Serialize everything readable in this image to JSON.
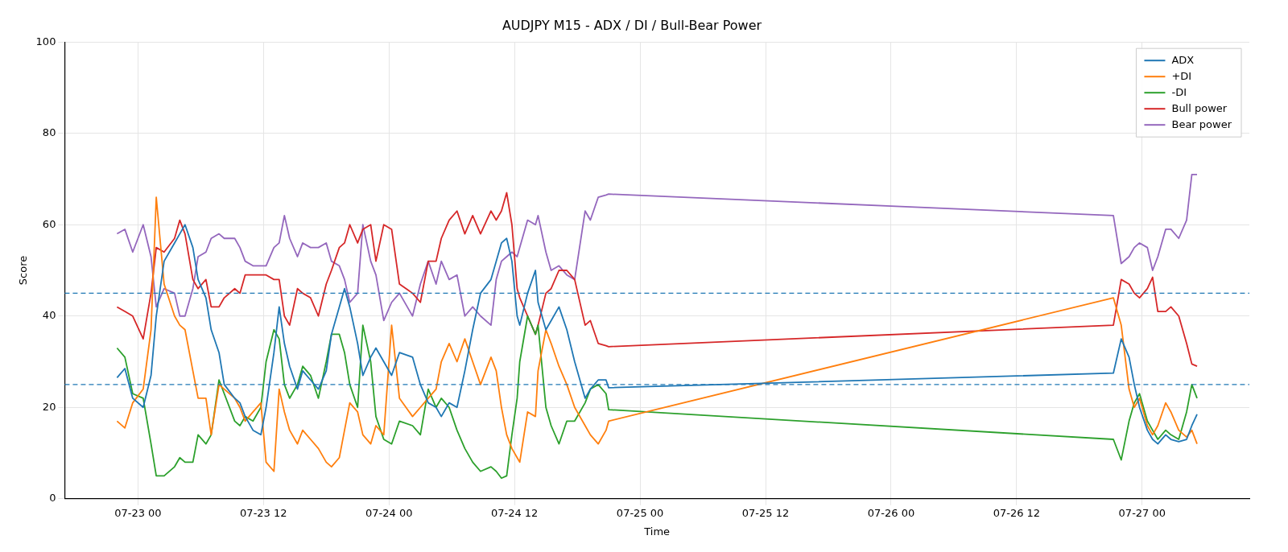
{
  "chart_data": {
    "type": "line",
    "title": "AUDJPY M15 - ADX / DI / Bull-Bear Power",
    "xlabel": "Time",
    "ylabel": "Score",
    "x": [
      "--07-22T22:00",
      "--07-22T22:45",
      "--07-22T23:30",
      "--07-23T00:30",
      "--07-23T01:15",
      "--07-23T01:45",
      "--07-23T02:30",
      "--07-23T03:30",
      "--07-23T04:00",
      "--07-23T04:30",
      "--07-23T05:15",
      "--07-23T05:45",
      "--07-23T06:30",
      "--07-23T07:00",
      "--07-23T07:45",
      "--07-23T08:15",
      "--07-23T09:15",
      "--07-23T09:45",
      "--07-23T10:15",
      "--07-23T11:00",
      "--07-23T11:45",
      "--07-23T12:15",
      "--07-23T13:00",
      "--07-23T13:30",
      "--07-23T14:00",
      "--07-23T14:30",
      "--07-23T15:15",
      "--07-23T15:45",
      "--07-23T16:30",
      "--07-23T17:15",
      "--07-23T18:00",
      "--07-23T18:30",
      "--07-23T19:15",
      "--07-23T19:45",
      "--07-23T20:15",
      "--07-23T21:00",
      "--07-23T21:30",
      "--07-23T22:15",
      "--07-23T22:45",
      "--07-23T23:30",
      "--07-24T00:15",
      "--07-24T01:00",
      "--07-24T02:15",
      "--07-24T03:00",
      "--07-24T03:45",
      "--07-24T04:30",
      "--07-24T05:00",
      "--07-24T05:45",
      "--07-24T06:30",
      "--07-24T07:15",
      "--07-24T08:00",
      "--07-24T08:45",
      "--07-24T09:45",
      "--07-24T10:15",
      "--07-24T10:45",
      "--07-24T11:15",
      "--07-24T11:45",
      "--07-24T12:15",
      "--07-24T12:30",
      "--07-24T13:15",
      "--07-24T14:00",
      "--07-24T14:15",
      "--07-24T15:00",
      "--07-24T15:30",
      "--07-24T16:15",
      "--07-24T17:00",
      "--07-24T17:45",
      "--07-24T18:45",
      "--07-24T19:15",
      "--07-24T20:00",
      "--07-24T20:45",
      "--07-24T21:00",
      "--07-26T21:15",
      "--07-26T22:00",
      "--07-26T22:45",
      "--07-26T23:15",
      "--07-26T23:45",
      "--07-27T00:30",
      "--07-27T01:00",
      "--07-27T01:30",
      "--07-27T02:15",
      "--07-27T02:45",
      "--07-27T03:30",
      "--07-27T04:15",
      "--07-27T04:45",
      "--07-27T05:15"
    ],
    "series": [
      {
        "name": "ADX",
        "color": "#1f77b4",
        "values": [
          26.5,
          28.5,
          22,
          20,
          27,
          40,
          52,
          56,
          58,
          60,
          55,
          48,
          44,
          37,
          32,
          25,
          22,
          21,
          18,
          15,
          14,
          20,
          32,
          42,
          34,
          29,
          24,
          28,
          26,
          24,
          28,
          36,
          42,
          46,
          42,
          34,
          27,
          31,
          33,
          30,
          27,
          32,
          31,
          25,
          21,
          20,
          18,
          21,
          20,
          28,
          37,
          45,
          48,
          52,
          56,
          57,
          52,
          40,
          38,
          45,
          50,
          43,
          37,
          39,
          42,
          37,
          30,
          22,
          24,
          26,
          26,
          24.3,
          27.5,
          35,
          31,
          25,
          20,
          15,
          13,
          12,
          14,
          13,
          12.5,
          13,
          16,
          18.5
        ]
      },
      {
        "name": "+DI",
        "color": "#ff7f0e",
        "values": [
          17,
          15.5,
          21,
          24,
          37,
          66,
          47,
          40,
          38,
          37,
          28,
          22,
          22,
          14,
          25,
          24,
          22,
          20,
          17,
          19,
          21,
          8,
          6,
          24,
          19,
          15,
          12,
          15,
          13,
          11,
          8,
          7,
          9,
          15,
          21,
          19,
          14,
          12,
          16,
          14,
          38,
          22,
          18,
          20,
          22,
          24,
          30,
          34,
          30,
          35,
          30,
          25,
          31,
          28,
          20,
          14,
          11,
          9,
          8,
          19,
          18,
          28,
          37,
          34,
          29,
          25,
          20,
          16,
          14,
          12,
          15,
          17,
          44,
          38,
          24,
          20,
          22,
          16,
          14,
          16,
          21,
          19,
          15,
          13.5,
          15,
          12
        ]
      },
      {
        "name": "-DI",
        "color": "#2ca02c",
        "values": [
          33,
          31,
          23,
          22,
          12,
          5,
          5,
          7,
          9,
          8,
          8,
          14,
          12,
          14,
          26,
          23,
          17,
          16,
          18,
          17,
          20,
          30,
          37,
          35,
          25,
          22,
          25,
          29,
          27,
          22,
          30,
          36,
          36,
          32,
          25,
          20,
          38,
          30,
          18,
          13,
          12,
          17,
          16,
          14,
          24,
          20,
          22,
          20,
          15,
          11,
          8,
          6,
          7,
          6,
          4.5,
          5,
          14,
          22,
          30,
          40,
          36,
          38,
          20,
          16,
          12,
          17,
          17,
          21,
          24,
          25,
          23,
          19.5,
          13,
          8.5,
          17,
          21,
          23,
          17,
          15,
          13,
          15,
          14,
          13,
          19,
          25,
          22
        ]
      },
      {
        "name": "Bull power",
        "color": "#d62728",
        "values": [
          42,
          41,
          40,
          35,
          45,
          55,
          54,
          57,
          61,
          58,
          48,
          46,
          48,
          42,
          42,
          44,
          46,
          45,
          49,
          49,
          49,
          49,
          48,
          48,
          40,
          38,
          46,
          45,
          44,
          40,
          47,
          50,
          55,
          56,
          60,
          56,
          59,
          60,
          52,
          60,
          59,
          47,
          45,
          43,
          52,
          52,
          57,
          61,
          63,
          58,
          62,
          58,
          63,
          61,
          63,
          67,
          60,
          46,
          44,
          40,
          36,
          38,
          45,
          46,
          50,
          50,
          48,
          38,
          39,
          34,
          33.5,
          33.3,
          38,
          48,
          47,
          45,
          44,
          46,
          48.5,
          41,
          41,
          42,
          40,
          34,
          29.5,
          29
        ]
      },
      {
        "name": "Bear power",
        "color": "#9467bd",
        "values": [
          58,
          59,
          54,
          60,
          53,
          42,
          46,
          45,
          40,
          40,
          46,
          53,
          54,
          57,
          58,
          57,
          57,
          55,
          52,
          51,
          51,
          51,
          55,
          56,
          62,
          57,
          53,
          56,
          55,
          55,
          56,
          52,
          51,
          48,
          43,
          45,
          60,
          52,
          49,
          39,
          43,
          45,
          40,
          47,
          52,
          47,
          52,
          48,
          49,
          40,
          42,
          40,
          38,
          48,
          52,
          53,
          54,
          53,
          55,
          61,
          60,
          62,
          54,
          50,
          51,
          49,
          48,
          63,
          61,
          66,
          66.5,
          66.7,
          62,
          51.5,
          53,
          55,
          56,
          55,
          50,
          53,
          59,
          59,
          57,
          61,
          71,
          71
        ]
      }
    ],
    "xlim": [
      "--07-22T17:00",
      "--07-27T10:15"
    ],
    "xticks": [
      {
        "value": "--07-23T00:00",
        "label": "07-23 00"
      },
      {
        "value": "--07-23T12:00",
        "label": "07-23 12"
      },
      {
        "value": "--07-24T00:00",
        "label": "07-24 00"
      },
      {
        "value": "--07-24T12:00",
        "label": "07-24 12"
      },
      {
        "value": "--07-25T00:00",
        "label": "07-25 00"
      },
      {
        "value": "--07-25T12:00",
        "label": "07-25 12"
      },
      {
        "value": "--07-26T00:00",
        "label": "07-26 00"
      },
      {
        "value": "--07-26T12:00",
        "label": "07-26 12"
      },
      {
        "value": "--07-27T00:00",
        "label": "07-27 00"
      }
    ],
    "ylim": [
      0,
      100
    ],
    "yticks": [
      0,
      20,
      40,
      60,
      80,
      100
    ],
    "ref_lines": [
      {
        "axis": "y",
        "value": 45,
        "color": "#1f77b4",
        "line_style": "dashed"
      },
      {
        "axis": "y",
        "value": 25,
        "color": "#1f77b4",
        "line_style": "dashed"
      }
    ],
    "grid": true,
    "legend": "top right",
    "marker": "none",
    "line_style": "solid"
  }
}
